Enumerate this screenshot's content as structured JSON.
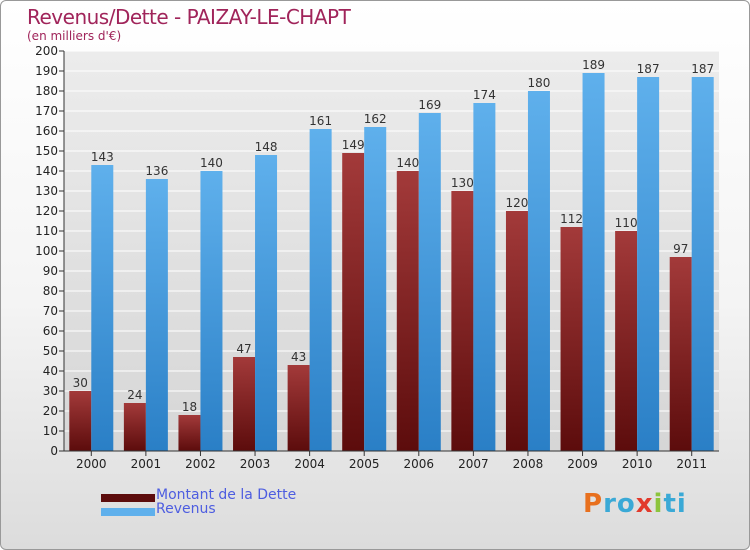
{
  "title": "Revenus/Dette - PAIZAY-LE-CHAPT",
  "subtitle": "(en milliers d'€)",
  "logo": {
    "text": "Proxiti",
    "letters": [
      "P",
      "r",
      "o",
      "x",
      "i",
      "t",
      "i"
    ],
    "colors": [
      "#e8701e",
      "#3aa9d6",
      "#3aa9d6",
      "#e23a2c",
      "#8cc43d",
      "#3aa9d6",
      "#3aa9d6"
    ]
  },
  "legend": {
    "debt_label": "Montant de la Dette",
    "revenue_label": "Revenus"
  },
  "colors": {
    "debt_top": "#a33a3a",
    "debt_bottom": "#5c0c0c",
    "revenue_top": "#5fb0ec",
    "revenue_bottom": "#2a7fc6",
    "title": "#a0245a",
    "legend_text": "#4d5de0",
    "grid": "#ffffff"
  },
  "chart_data": {
    "type": "bar",
    "categories": [
      "2000",
      "2001",
      "2002",
      "2003",
      "2004",
      "2005",
      "2006",
      "2007",
      "2008",
      "2009",
      "2010",
      "2011"
    ],
    "series": [
      {
        "name": "Montant de la Dette",
        "values": [
          30,
          24,
          18,
          47,
          43,
          149,
          140,
          130,
          120,
          112,
          110,
          97
        ]
      },
      {
        "name": "Revenus",
        "values": [
          143,
          136,
          140,
          148,
          161,
          162,
          169,
          174,
          180,
          189,
          187,
          187
        ]
      }
    ],
    "ylim": [
      0,
      200
    ],
    "ytick_step": 10,
    "grid": true,
    "legend_position": "bottom-left"
  }
}
